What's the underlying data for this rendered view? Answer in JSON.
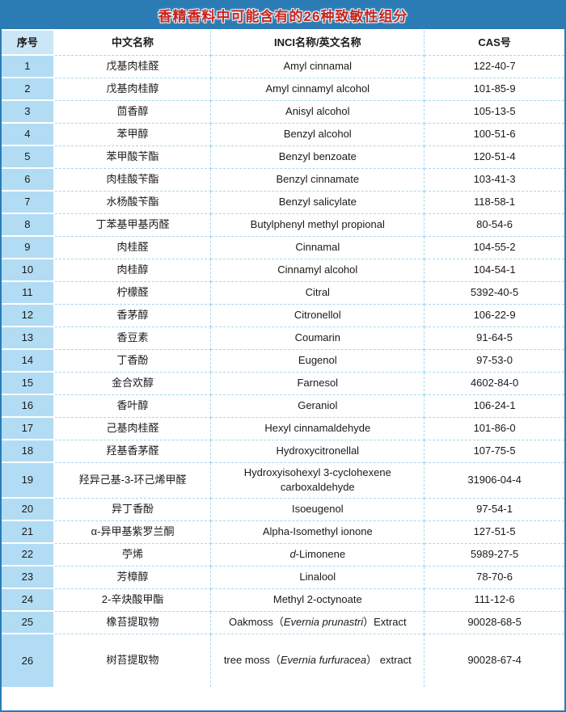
{
  "title": "香精香料中可能含有的26种致敏性组分",
  "colors": {
    "title_bar_bg": "#2b7cb4",
    "title_text": "#c9251f",
    "index_header_bg": "#cbe6f7",
    "index_cell_bg": "#b2dcf4",
    "inner_border": "#a9d6ee",
    "outer_border": "#2b7cb4",
    "body_text": "#1a1a1a"
  },
  "table": {
    "headers": [
      "序号",
      "中文名称",
      "INCI名称/英文名称",
      "CAS号"
    ],
    "rows": [
      {
        "no": "1",
        "cn": "戊基肉桂醛",
        "inci": [
          [
            "Amyl cinnamal",
            false
          ]
        ],
        "cas": "122-40-7"
      },
      {
        "no": "2",
        "cn": "戊基肉桂醇",
        "inci": [
          [
            "Amyl cinnamyl alcohol",
            false
          ]
        ],
        "cas": "101-85-9"
      },
      {
        "no": "3",
        "cn": "茴香醇",
        "inci": [
          [
            "Anisyl alcohol",
            false
          ]
        ],
        "cas": "105-13-5"
      },
      {
        "no": "4",
        "cn": "苯甲醇",
        "inci": [
          [
            "Benzyl alcohol",
            false
          ]
        ],
        "cas": "100-51-6"
      },
      {
        "no": "5",
        "cn": "苯甲酸苄酯",
        "inci": [
          [
            "Benzyl benzoate",
            false
          ]
        ],
        "cas": "120-51-4"
      },
      {
        "no": "6",
        "cn": "肉桂酸苄酯",
        "inci": [
          [
            "Benzyl cinnamate",
            false
          ]
        ],
        "cas": "103-41-3"
      },
      {
        "no": "7",
        "cn": "水杨酸苄酯",
        "inci": [
          [
            "Benzyl salicylate",
            false
          ]
        ],
        "cas": "118-58-1"
      },
      {
        "no": "8",
        "cn": "丁苯基甲基丙醛",
        "inci": [
          [
            "Butylphenyl methyl propional",
            false
          ]
        ],
        "cas": "80-54-6"
      },
      {
        "no": "9",
        "cn": "肉桂醛",
        "inci": [
          [
            "Cinnamal",
            false
          ]
        ],
        "cas": "104-55-2"
      },
      {
        "no": "10",
        "cn": "肉桂醇",
        "inci": [
          [
            "Cinnamyl alcohol",
            false
          ]
        ],
        "cas": "104-54-1"
      },
      {
        "no": "11",
        "cn": "柠檬醛",
        "inci": [
          [
            "Citral",
            false
          ]
        ],
        "cas": "5392-40-5"
      },
      {
        "no": "12",
        "cn": "香茅醇",
        "inci": [
          [
            "Citronellol",
            false
          ]
        ],
        "cas": "106-22-9"
      },
      {
        "no": "13",
        "cn": "香豆素",
        "inci": [
          [
            "Coumarin",
            false
          ]
        ],
        "cas": "91-64-5"
      },
      {
        "no": "14",
        "cn": "丁香酚",
        "inci": [
          [
            "Eugenol",
            false
          ]
        ],
        "cas": "97-53-0"
      },
      {
        "no": "15",
        "cn": "金合欢醇",
        "inci": [
          [
            "Farnesol",
            false
          ]
        ],
        "cas": "4602-84-0"
      },
      {
        "no": "16",
        "cn": "香叶醇",
        "inci": [
          [
            "Geraniol",
            false
          ]
        ],
        "cas": "106-24-1"
      },
      {
        "no": "17",
        "cn": "己基肉桂醛",
        "inci": [
          [
            "Hexyl cinnamaldehyde",
            false
          ]
        ],
        "cas": "101-86-0"
      },
      {
        "no": "18",
        "cn": "羟基香茅醛",
        "inci": [
          [
            "Hydroxycitronellal",
            false
          ]
        ],
        "cas": "107-75-5"
      },
      {
        "no": "19",
        "cn": "羟异己基-3-环己烯甲醛",
        "inci": [
          [
            "Hydroxyisohexyl 3-cyclohexene carboxaldehyde",
            false
          ]
        ],
        "cas": "31906-04-4"
      },
      {
        "no": "20",
        "cn": "异丁香酚",
        "inci": [
          [
            "Isoeugenol",
            false
          ]
        ],
        "cas": "97-54-1"
      },
      {
        "no": "21",
        "cn": "α-异甲基紫罗兰酮",
        "inci": [
          [
            "Alpha-Isomethyl ionone",
            false
          ]
        ],
        "cas": "127-51-5"
      },
      {
        "no": "22",
        "cn": "苧烯",
        "inci": [
          [
            "d",
            true
          ],
          [
            "-Limonene",
            false
          ]
        ],
        "cas": "5989-27-5"
      },
      {
        "no": "23",
        "cn": "芳樟醇",
        "inci": [
          [
            "Linalool",
            false
          ]
        ],
        "cas": "78-70-6"
      },
      {
        "no": "24",
        "cn": "2-辛炔酸甲酯",
        "inci": [
          [
            "Methyl 2-octynoate",
            false
          ]
        ],
        "cas": "111-12-6"
      },
      {
        "no": "25",
        "cn": "橡苔提取物",
        "inci": [
          [
            "Oakmoss（",
            false
          ],
          [
            "Evernia prunastri",
            true
          ],
          [
            "）Extract",
            false
          ]
        ],
        "cas": "90028-68-5"
      },
      {
        "no": "26",
        "cn": "树苔提取物",
        "inci": [
          [
            "tree moss（",
            false
          ],
          [
            "Evernia furfuracea",
            true
          ],
          [
            "） extract",
            false
          ]
        ],
        "cas": "90028-67-4"
      }
    ]
  }
}
